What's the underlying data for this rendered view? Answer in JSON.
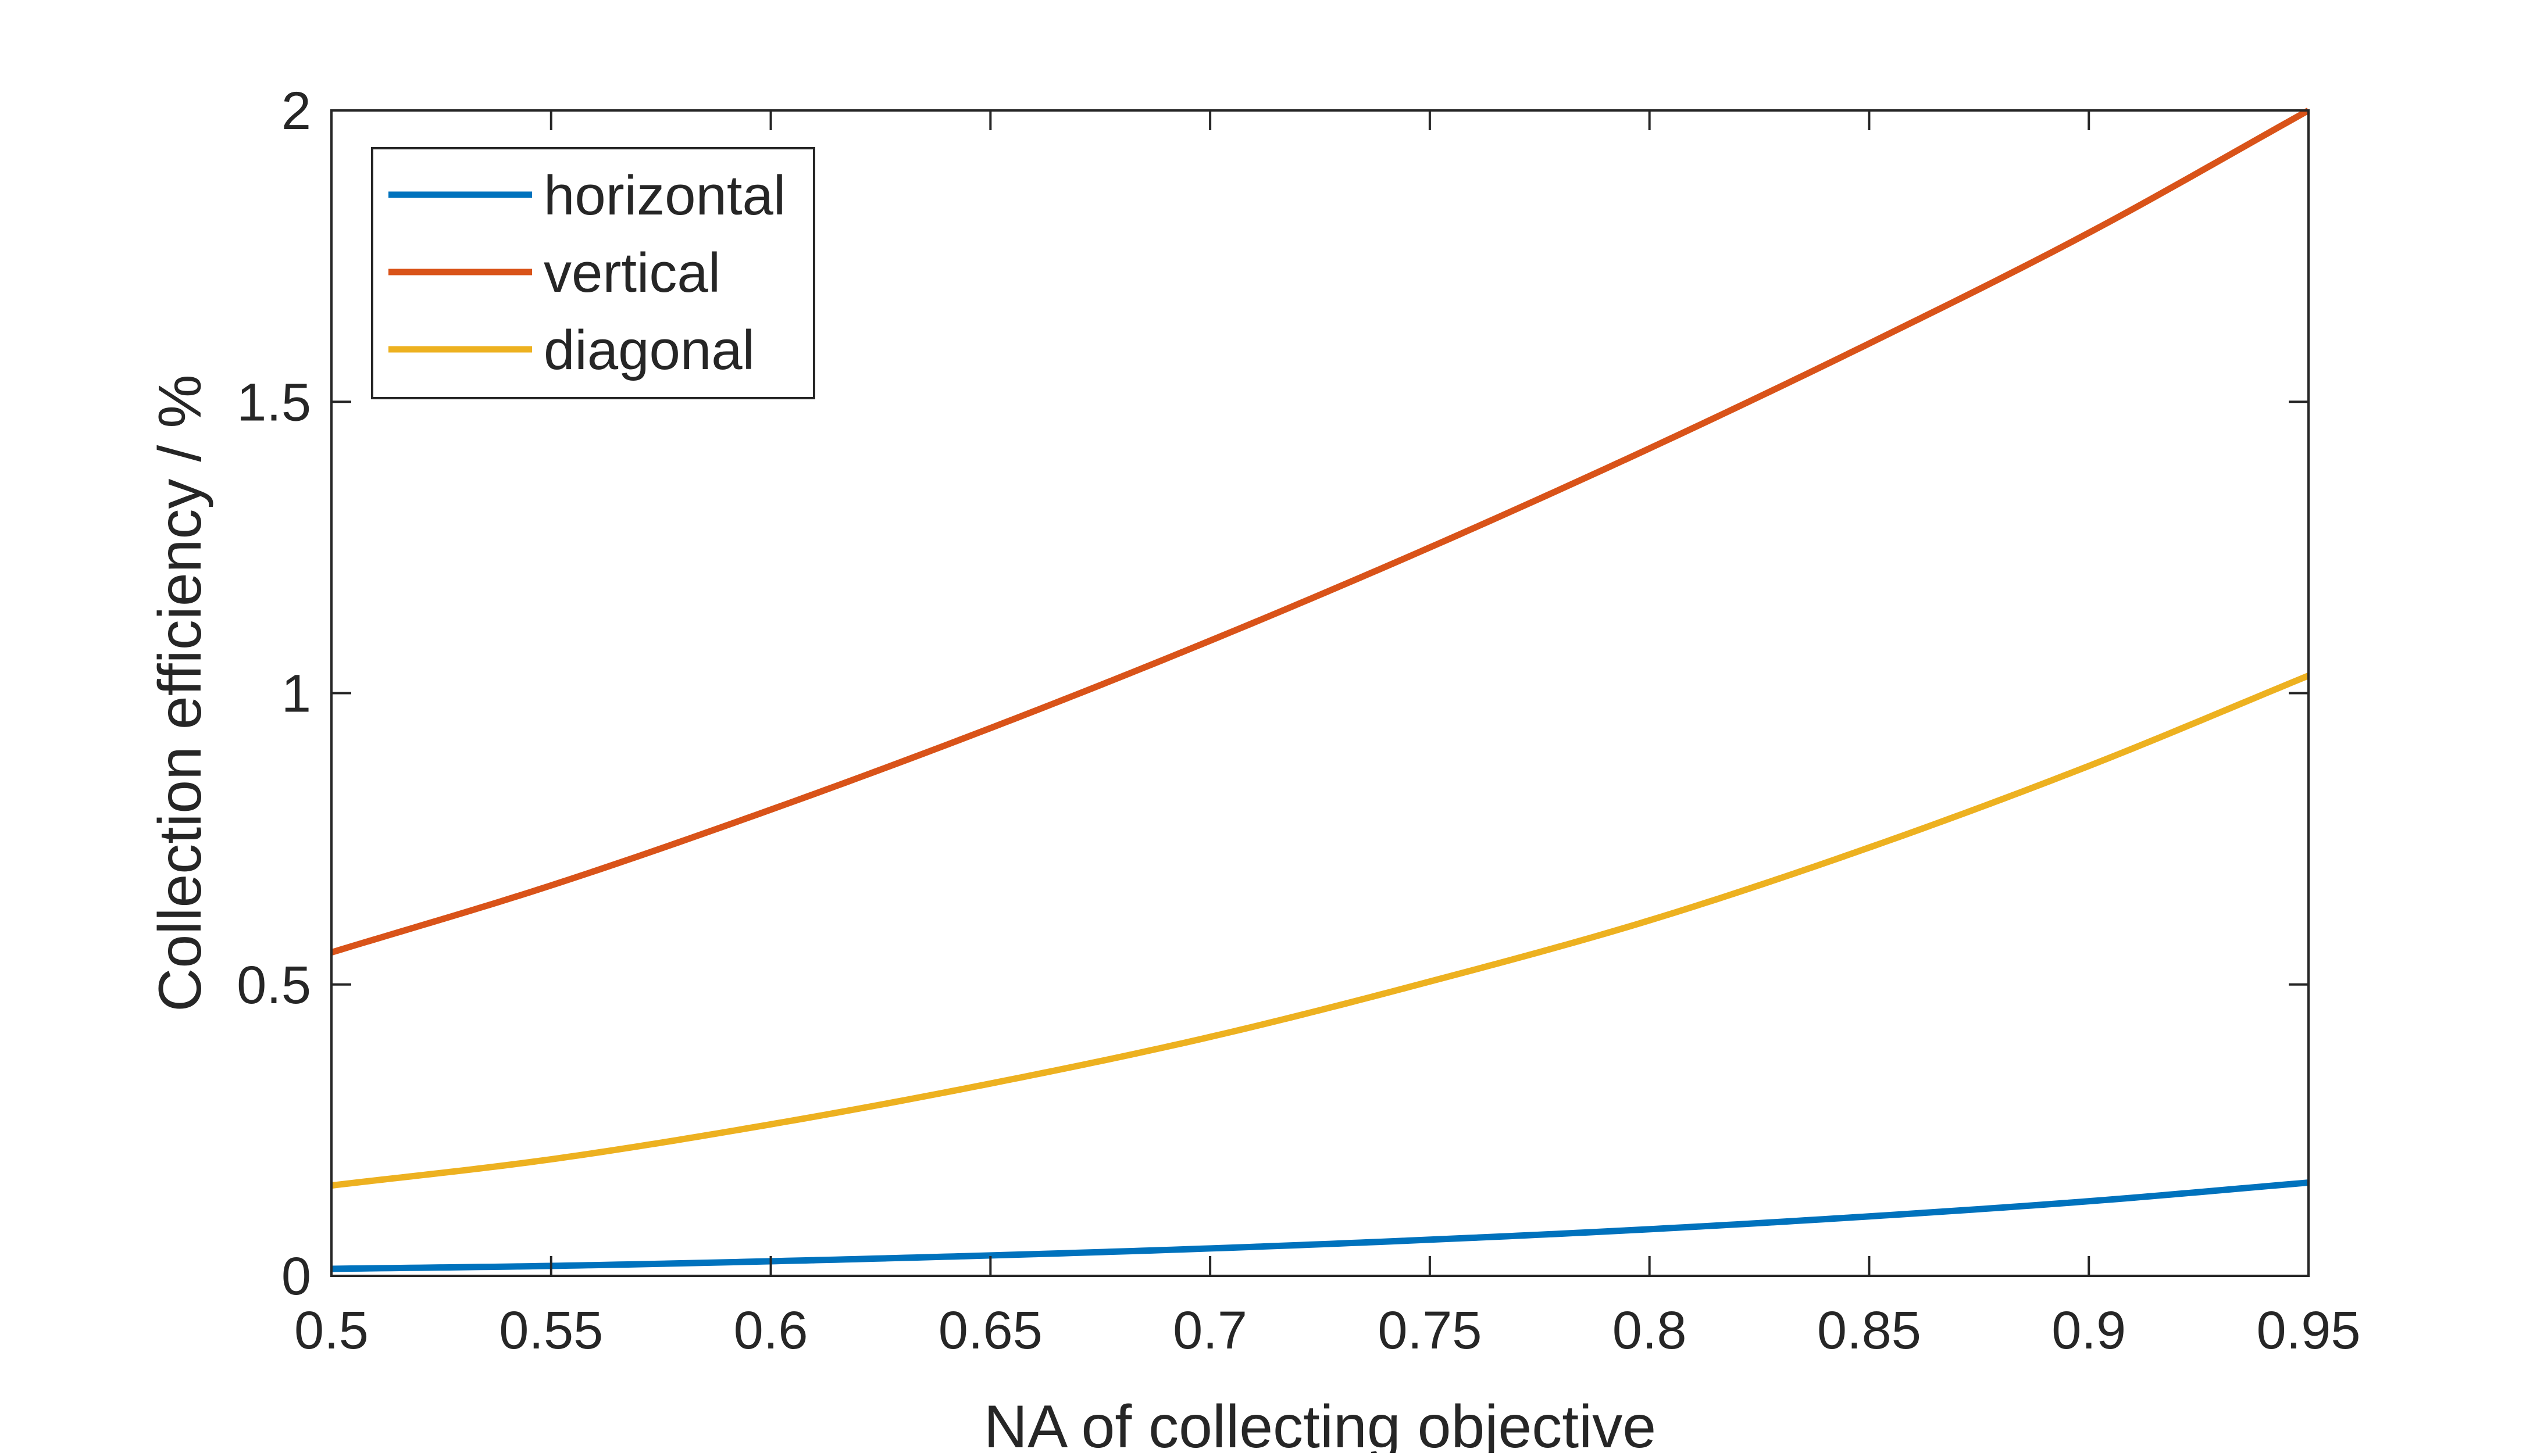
{
  "chart_data": {
    "type": "line",
    "title": "",
    "xlabel": "NA of collecting objective",
    "ylabel": "Collection efficiency / %",
    "xlim": [
      0.5,
      0.95
    ],
    "ylim": [
      0,
      2
    ],
    "xticks": [
      0.5,
      0.55,
      0.6,
      0.65,
      0.7,
      0.75,
      0.8,
      0.85,
      0.9,
      0.95
    ],
    "xtick_labels": [
      "0.5",
      "0.55",
      "0.6",
      "0.65",
      "0.7",
      "0.75",
      "0.8",
      "0.85",
      "0.9",
      "0.95"
    ],
    "yticks": [
      0,
      0.5,
      1,
      1.5,
      2
    ],
    "ytick_labels": [
      "0",
      "0.5",
      "1",
      "1.5",
      "2"
    ],
    "grid": false,
    "legend_position": "top-left",
    "x": [
      0.5,
      0.55,
      0.6,
      0.65,
      0.7,
      0.75,
      0.8,
      0.85,
      0.9,
      0.95
    ],
    "series": [
      {
        "name": "horizontal",
        "color": "#0072BD",
        "values": [
          0.012,
          0.017,
          0.025,
          0.035,
          0.047,
          0.062,
          0.08,
          0.102,
          0.128,
          0.16
        ]
      },
      {
        "name": "vertical",
        "color": "#D95319",
        "values": [
          0.555,
          0.67,
          0.8,
          0.94,
          1.09,
          1.25,
          1.42,
          1.6,
          1.79,
          2.0
        ]
      },
      {
        "name": "diagonal",
        "color": "#EDB120",
        "values": [
          0.155,
          0.2,
          0.26,
          0.33,
          0.41,
          0.505,
          0.61,
          0.735,
          0.875,
          1.03
        ]
      }
    ]
  }
}
